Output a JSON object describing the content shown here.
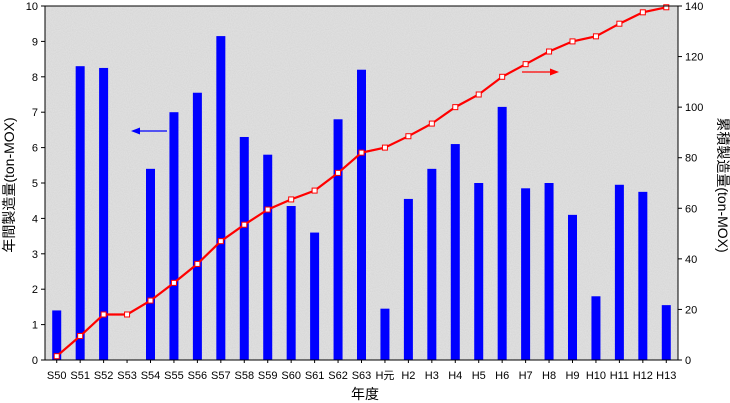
{
  "chart_data": {
    "type": "bar+line",
    "categories": [
      "S50",
      "S51",
      "S52",
      "S53",
      "S54",
      "S55",
      "S56",
      "S57",
      "S58",
      "S59",
      "S60",
      "S61",
      "S62",
      "S63",
      "H元",
      "H2",
      "H3",
      "H4",
      "H5",
      "H6",
      "H7",
      "H8",
      "H9",
      "H10",
      "H11",
      "H12",
      "H13"
    ],
    "xlabel": "年度",
    "ylabel_left": "年間製造量(ton-MOX)",
    "ylabel_right": "累積製造量(ton-MOX)",
    "ylim_left": [
      0,
      10
    ],
    "ylim_right": [
      0,
      140
    ],
    "yticks_left": [
      "0",
      "1",
      "2",
      "3",
      "4",
      "5",
      "6",
      "7",
      "8",
      "9",
      "10"
    ],
    "yticks_right": [
      "0",
      "20",
      "40",
      "60",
      "80",
      "100",
      "120",
      "140"
    ],
    "series": [
      {
        "axis": "left",
        "kind": "bar",
        "color": "#0000ff",
        "values": [
          1.4,
          8.3,
          8.25,
          0,
          5.4,
          7.0,
          7.55,
          9.15,
          6.3,
          5.8,
          4.35,
          3.6,
          6.8,
          8.2,
          1.45,
          4.55,
          5.4,
          6.1,
          5.0,
          7.15,
          4.85,
          5.0,
          4.1,
          1.8,
          4.95,
          4.75,
          1.55
        ]
      },
      {
        "axis": "right",
        "kind": "line",
        "color": "#ff0000",
        "values": [
          1.5,
          9.5,
          18,
          18,
          23.5,
          30.5,
          38,
          47,
          53.5,
          59.5,
          63.5,
          67,
          74,
          82,
          84,
          88.5,
          93.5,
          100,
          105,
          112,
          117,
          122,
          126,
          128,
          133,
          137.5,
          139.5
        ]
      }
    ],
    "grid": false,
    "annotations": [
      "left-arrow pointing to bar axis",
      "right-arrow pointing to line axis"
    ]
  }
}
